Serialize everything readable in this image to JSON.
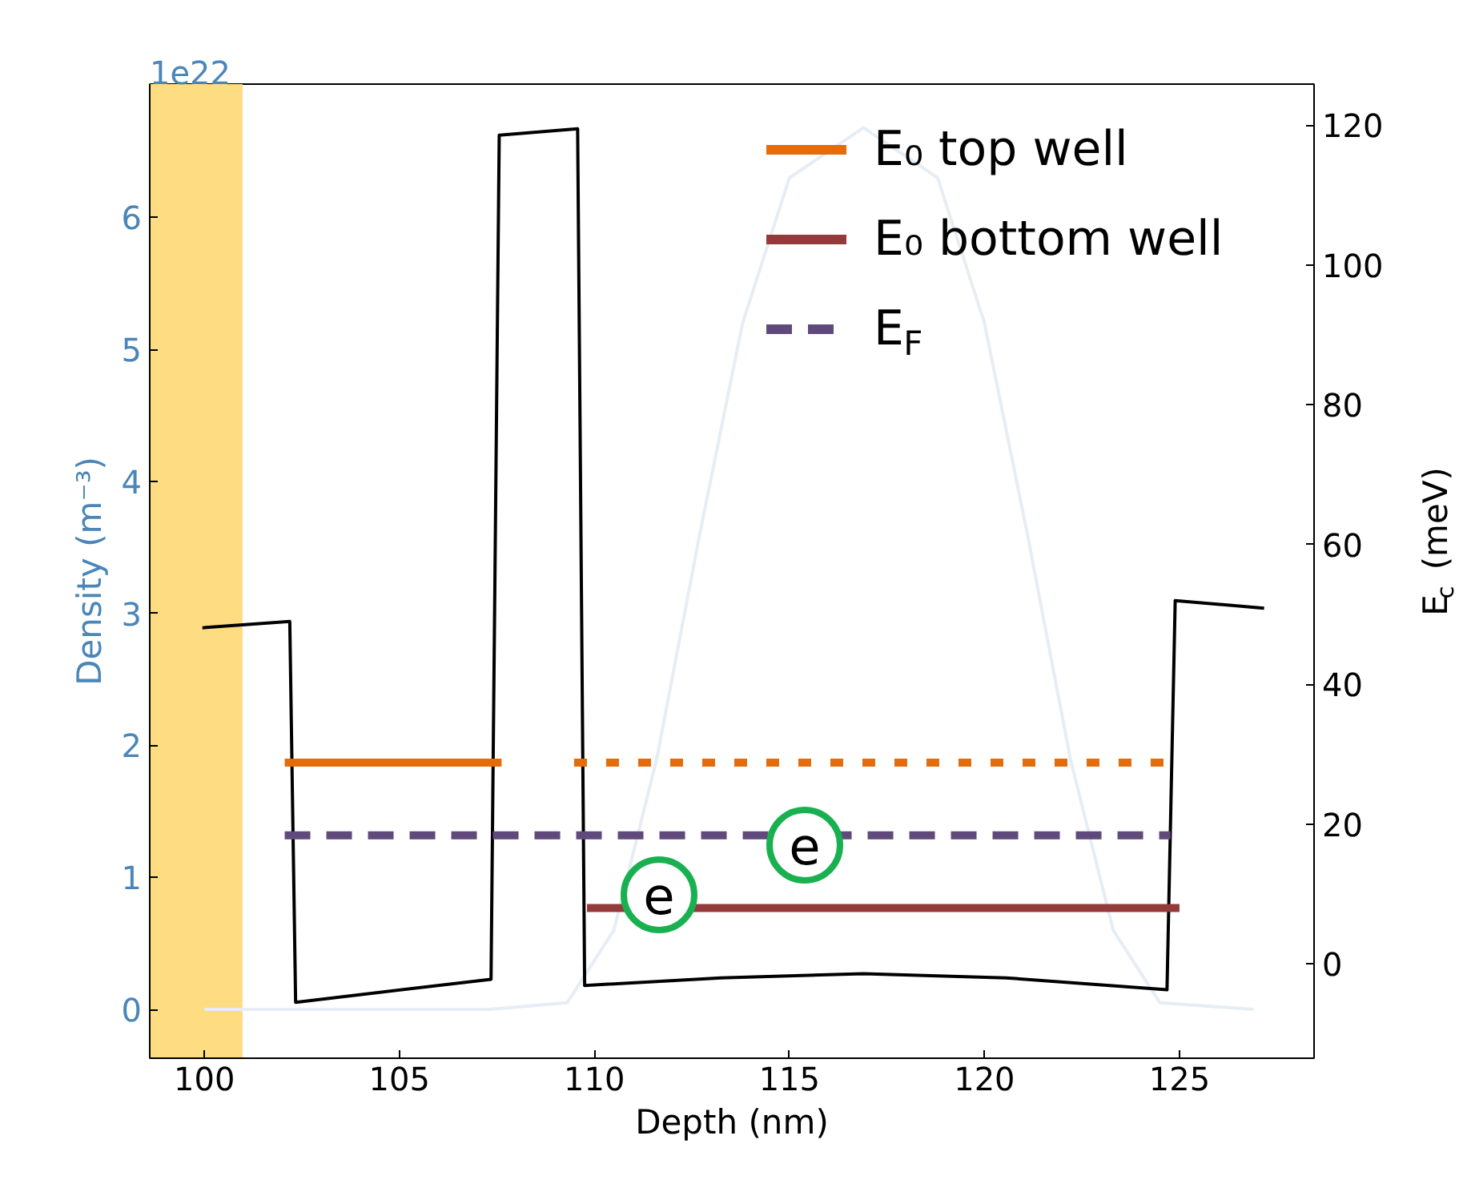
{
  "chart_data": {
    "type": "line",
    "xlabel": "Depth (nm)",
    "ylabel": "Density (m⁻³)",
    "y2label": "E$_{c}$ (meV)",
    "annotations": [
      "1e22",
      "e",
      "e"
    ],
    "xlim": [
      98.6,
      128.45
    ],
    "xticks": [
      100,
      105,
      110,
      115,
      120,
      125
    ],
    "ylim": [
      -0.37,
      7.01
    ],
    "yticks": [
      0,
      1,
      2,
      3,
      4,
      5,
      6
    ],
    "y2lim": [
      -13.5,
      125.9
    ],
    "y2ticks": [
      0,
      20,
      40,
      60,
      80,
      100,
      120
    ],
    "bands": [
      {
        "axis": "x",
        "from": 98.6,
        "to": 100.98,
        "color": "#fddc82"
      }
    ],
    "legend": "top right",
    "series": [
      {
        "color": "#e6edf5",
        "x": [
          100,
          107.3,
          109.3,
          110.5,
          111.6,
          112.7,
          113.8,
          115.0,
          116.9,
          118.8,
          120.0,
          121.1,
          122.2,
          123.3,
          124.5,
          126.9
        ],
        "values": [
          0.0,
          0.0,
          0.05,
          0.6,
          1.9,
          3.6,
          5.2,
          6.3,
          6.68,
          6.3,
          5.2,
          3.6,
          1.9,
          0.6,
          0.05,
          0.0
        ]
      },
      {
        "color": "#000000",
        "axis": "y2",
        "x": [
          99.95,
          102.19,
          102.34,
          107.35,
          107.56,
          109.57,
          109.75,
          113.24,
          116.9,
          120.55,
          124.68,
          124.89,
          127.17
        ],
        "values": [
          48.1,
          49.0,
          -5.5,
          -2.2,
          118.6,
          119.5,
          -3.1,
          -2.0,
          -1.4,
          -2.0,
          -3.7,
          52.0,
          50.9
        ]
      },
      {
        "name": "E₀ top well",
        "color": "#e46c0a",
        "axis": "y2",
        "line_style": "solid",
        "x": [
          102.06,
          107.62
        ],
        "values": [
          28.8,
          28.8
        ]
      },
      {
        "color": "#e46c0a",
        "axis": "y2",
        "line_style": "dotted",
        "x": [
          109.48,
          124.8
        ],
        "values": [
          28.8,
          28.8
        ]
      },
      {
        "name": "E₀ bottom well",
        "color": "#943a3a",
        "axis": "y2",
        "line_style": "solid",
        "x": [
          109.81,
          125.0
        ],
        "values": [
          8.0,
          8.0
        ]
      },
      {
        "name": "E$_{F}$",
        "color": "#604a7b",
        "axis": "y2",
        "line_style": "dashed",
        "x": [
          102.06,
          124.77
        ],
        "values": [
          18.4,
          18.4
        ]
      }
    ]
  }
}
